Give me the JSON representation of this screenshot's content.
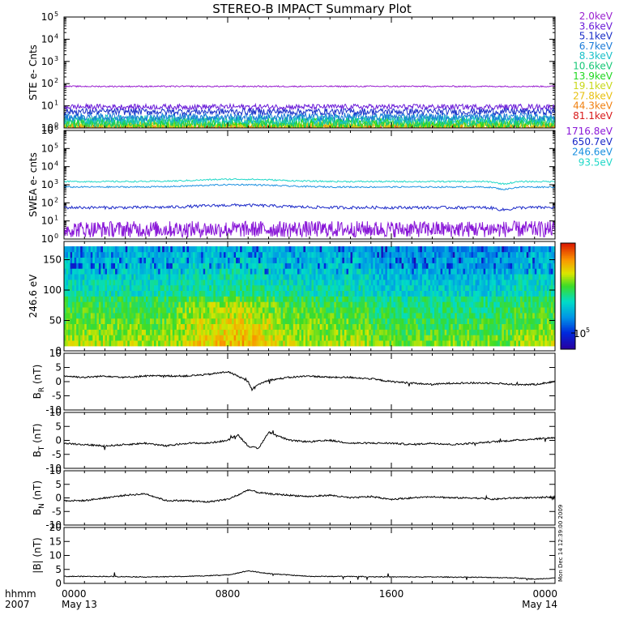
{
  "title": "STEREO-B IMPACT Summary Plot",
  "footer": {
    "left_top": "hhmm",
    "left_bottom": "2007",
    "side_note": "Mon Dec 14 12:39:00 2009"
  },
  "x_axis": {
    "ticks": [
      {
        "t": 0,
        "top": "0000",
        "bottom": "May 13"
      },
      {
        "t": 8,
        "top": "0800",
        "bottom": ""
      },
      {
        "t": 16,
        "top": "1600",
        "bottom": ""
      },
      {
        "t": 24,
        "top": "0000",
        "bottom": "May 14"
      }
    ]
  },
  "colors": {
    "ste": [
      "#9a20d0",
      "#6a1ad8",
      "#1a2ec8",
      "#1a7ad8",
      "#18c0c8",
      "#18c878",
      "#20d820",
      "#c8d818",
      "#e8c010",
      "#f08010",
      "#d81818"
    ],
    "swea": [
      "#8a18d8",
      "#1a28c8",
      "#1a90e0",
      "#20d8c8"
    ]
  },
  "chart_data": [
    {
      "type": "line",
      "ylabel": "STE e- Cnts",
      "scale": "log",
      "ylim": [
        1,
        100000
      ],
      "xlim": [
        0,
        24
      ],
      "yticks": [
        {
          "b": "10",
          "e": "0"
        },
        {
          "b": "10",
          "e": "1"
        },
        {
          "b": "10",
          "e": "2"
        },
        {
          "b": "10",
          "e": "3"
        },
        {
          "b": "10",
          "e": "4"
        },
        {
          "b": "10",
          "e": "5"
        }
      ],
      "legend": [
        "2.0keV",
        "3.6keV",
        "5.1keV",
        "6.7keV",
        "8.3keV",
        "10.6keV",
        "13.9keV",
        "19.1keV",
        "27.8keV",
        "44.3keV",
        "81.1keV"
      ],
      "series": [
        {
          "name": "2.0keV",
          "level": 75,
          "noise": 0.03
        },
        {
          "name": "3.6keV",
          "level": 9,
          "noise": 0.12
        },
        {
          "name": "5.1keV",
          "level": 5.5,
          "noise": 0.15
        },
        {
          "name": "6.7keV",
          "level": 3.2,
          "noise": 0.18
        },
        {
          "name": "8.3keV",
          "level": 2.4,
          "noise": 0.22
        },
        {
          "name": "10.6keV",
          "level": 1.9,
          "noise": 0.25
        },
        {
          "name": "13.9keV",
          "level": 1.6,
          "noise": 0.25
        },
        {
          "name": "19.1keV",
          "level": 1.35,
          "noise": 0.22
        },
        {
          "name": "27.8keV",
          "level": 1.2,
          "noise": 0.18
        },
        {
          "name": "44.3keV",
          "level": 1.1,
          "noise": 0.15
        },
        {
          "name": "81.1keV",
          "level": 1.05,
          "noise": 0.1
        }
      ]
    },
    {
      "type": "line",
      "ylabel": "SWEA e- cnts",
      "scale": "log",
      "ylim": [
        1,
        1000000
      ],
      "xlim": [
        0,
        24
      ],
      "yticks": [
        {
          "b": "10",
          "e": "0"
        },
        {
          "b": "10",
          "e": "1"
        },
        {
          "b": "10",
          "e": "2"
        },
        {
          "b": "10",
          "e": "3"
        },
        {
          "b": "10",
          "e": "4"
        },
        {
          "b": "10",
          "e": "5"
        },
        {
          "b": "10",
          "e": "6"
        }
      ],
      "legend": [
        "1716.8eV",
        "650.7eV",
        "246.6eV",
        "93.5eV"
      ],
      "series": [
        {
          "name": "1716.8eV",
          "level": 3.5,
          "noise": 0.45
        },
        {
          "name": "650.7eV",
          "level": 55,
          "noise": 0.08
        },
        {
          "name": "246.6eV",
          "level": 750,
          "noise": 0.04
        },
        {
          "name": "93.5eV",
          "level": 1500,
          "noise": 0.04
        }
      ]
    },
    {
      "type": "heatmap",
      "ylabel": "246.6 eV",
      "ylim": [
        0,
        180
      ],
      "xlim": [
        0,
        24
      ],
      "yticks": [
        "0",
        "50",
        "100",
        "150"
      ],
      "colorbar_tick": {
        "b": "10",
        "e": "5"
      }
    },
    {
      "type": "line",
      "ylabel": "B_R (nT)",
      "label_main": "B",
      "label_sub": "R",
      "label_unit": "(nT)",
      "ylim": [
        -10,
        10
      ],
      "yticks": [
        "-10",
        "-5",
        "0",
        "5",
        "10"
      ],
      "x": [
        0,
        1,
        2,
        3,
        4,
        5,
        6,
        7,
        8,
        8.5,
        9,
        9.2,
        9.5,
        10,
        11,
        12,
        13,
        14,
        15,
        16,
        17,
        18,
        19,
        20,
        21,
        22,
        23,
        24
      ],
      "values": [
        2,
        1.5,
        2,
        1.5,
        2,
        2,
        2,
        2.5,
        3.5,
        2,
        0,
        -3,
        -1,
        0.5,
        1.5,
        2,
        1.5,
        1.5,
        1,
        0,
        -0.5,
        -1,
        -0.5,
        -0.5,
        -0.5,
        -1,
        -1,
        0
      ]
    },
    {
      "type": "line",
      "ylabel": "B_T (nT)",
      "label_main": "B",
      "label_sub": "T",
      "label_unit": "(nT)",
      "ylim": [
        -10,
        10
      ],
      "yticks": [
        "-10",
        "-5",
        "0",
        "5",
        "10"
      ],
      "x": [
        0,
        1,
        2,
        3,
        4,
        5,
        6,
        7,
        8,
        8.5,
        9,
        9.5,
        10,
        11,
        12,
        13,
        14,
        15,
        16,
        17,
        18,
        19,
        20,
        21,
        22,
        23,
        24
      ],
      "values": [
        -1,
        -1.5,
        -2,
        -1.5,
        -1,
        -2,
        -1,
        -1,
        0,
        2,
        -2,
        -3,
        3,
        0,
        -0.5,
        0,
        -1,
        -1,
        -1,
        -1.5,
        -1,
        -1.5,
        -1,
        -0.5,
        0,
        0.5,
        1
      ]
    },
    {
      "type": "line",
      "ylabel": "B_N (nT)",
      "label_main": "B",
      "label_sub": "N",
      "label_unit": "(nT)",
      "ylim": [
        -10,
        10
      ],
      "yticks": [
        "-10",
        "-5",
        "0",
        "5",
        "10"
      ],
      "x": [
        0,
        1,
        2,
        3,
        4,
        5,
        6,
        7,
        8,
        8.5,
        9,
        9.5,
        10,
        11,
        12,
        13,
        14,
        15,
        16,
        17,
        18,
        19,
        20,
        21,
        22,
        23,
        24
      ],
      "values": [
        -1,
        -1,
        0,
        1,
        1.5,
        -1,
        -1,
        -1.5,
        -0.5,
        1,
        3,
        2,
        1.5,
        1,
        0.5,
        1,
        0,
        0.5,
        -0.5,
        0,
        0.5,
        0,
        0,
        -0.5,
        0,
        0,
        0.5
      ]
    },
    {
      "type": "line",
      "ylabel": "|B| (nT)",
      "label_main": "|B|",
      "label_sub": "",
      "label_unit": "(nT)",
      "ylim": [
        0,
        20
      ],
      "yticks": [
        "0",
        "5",
        "10",
        "15",
        "20"
      ],
      "x": [
        0,
        2,
        4,
        6,
        8,
        9,
        9.5,
        10,
        12,
        14,
        16,
        18,
        20,
        22,
        23,
        24
      ],
      "values": [
        2.5,
        2.5,
        2.3,
        2.5,
        3,
        4.5,
        4,
        3.5,
        2.5,
        2.5,
        2.3,
        2.3,
        2.2,
        2,
        1.5,
        2
      ]
    }
  ]
}
